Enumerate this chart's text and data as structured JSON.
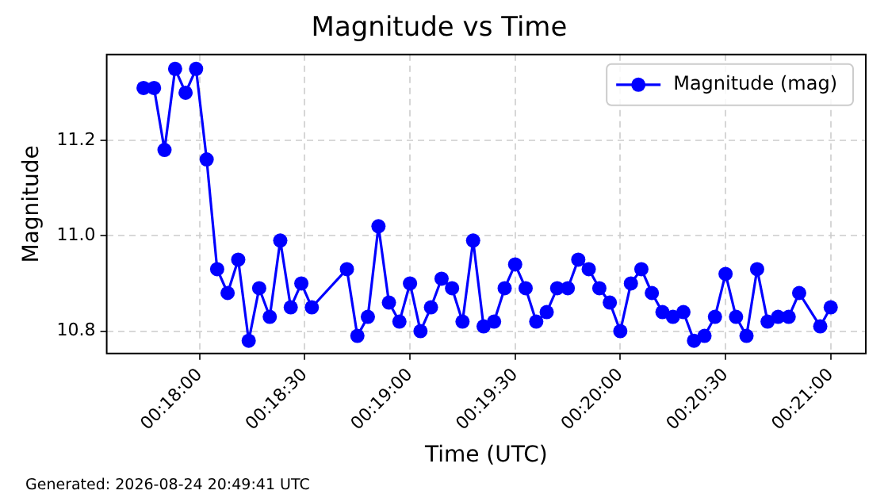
{
  "chart_data": {
    "type": "line",
    "title": "Magnitude vs Time",
    "xlabel": "Time (UTC)",
    "ylabel": "Magnitude",
    "annotations": [
      "Generated: 2026-08-24 20:49:41 UTC"
    ],
    "x": [
      0.29556,
      0.29639,
      0.29722,
      0.29806,
      0.29889,
      0.29972,
      0.30056,
      0.30139,
      0.30222,
      0.30306,
      0.30389,
      0.30472,
      0.30556,
      0.30639,
      0.30722,
      0.30806,
      0.30889,
      0.31167,
      0.3125,
      0.31333,
      0.31417,
      0.315,
      0.31583,
      0.31667,
      0.3175,
      0.31833,
      0.31917,
      0.32,
      0.32083,
      0.32167,
      0.3225,
      0.32333,
      0.32417,
      0.325,
      0.32583,
      0.32667,
      0.3275,
      0.32833,
      0.32917,
      0.33,
      0.33083,
      0.33167,
      0.3325,
      0.33333,
      0.33417,
      0.335,
      0.33583,
      0.33667,
      0.3375,
      0.33833,
      0.33917,
      0.34,
      0.34083,
      0.34167,
      0.3425,
      0.34333,
      0.34417,
      0.345,
      0.34583,
      0.34667,
      0.3475,
      0.34917,
      0.35
    ],
    "series": [
      {
        "name": "Magnitude (mag)",
        "color": "#0000ff",
        "values": [
          11.31,
          11.31,
          11.18,
          11.35,
          11.3,
          11.35,
          11.16,
          10.93,
          10.88,
          10.95,
          10.78,
          10.89,
          10.83,
          10.99,
          10.85,
          10.9,
          10.85,
          10.93,
          10.79,
          10.83,
          11.02,
          10.86,
          10.82,
          10.9,
          10.8,
          10.85,
          10.91,
          10.89,
          10.82,
          10.99,
          10.81,
          10.82,
          10.89,
          10.94,
          10.89,
          10.82,
          10.84,
          10.89,
          10.89,
          10.95,
          10.93,
          10.89,
          10.86,
          10.8,
          10.9,
          10.93,
          10.88,
          10.84,
          10.83,
          10.84,
          10.78,
          10.79,
          10.83,
          10.92,
          10.83,
          10.79,
          10.93,
          10.82,
          10.83,
          10.83,
          10.88,
          10.81,
          10.85
        ]
      }
    ],
    "xlim": [
      0.29264,
      0.35278
    ],
    "xticks": [
      {
        "value": 0.3,
        "label": "00:18:00"
      },
      {
        "value": 0.30833,
        "label": "00:18:30"
      },
      {
        "value": 0.31667,
        "label": "00:19:00"
      },
      {
        "value": 0.325,
        "label": "00:19:30"
      },
      {
        "value": 0.33333,
        "label": "00:20:00"
      },
      {
        "value": 0.34167,
        "label": "00:20:30"
      },
      {
        "value": 0.35,
        "label": "00:21:00"
      }
    ],
    "ylim": [
      10.753,
      11.38
    ],
    "yticks": [
      10.8,
      {
        "value": 11,
        "label": "11.0"
      },
      11.2
    ],
    "grid": true,
    "legend": "top right",
    "marker": "circle",
    "line_style": "solid"
  }
}
